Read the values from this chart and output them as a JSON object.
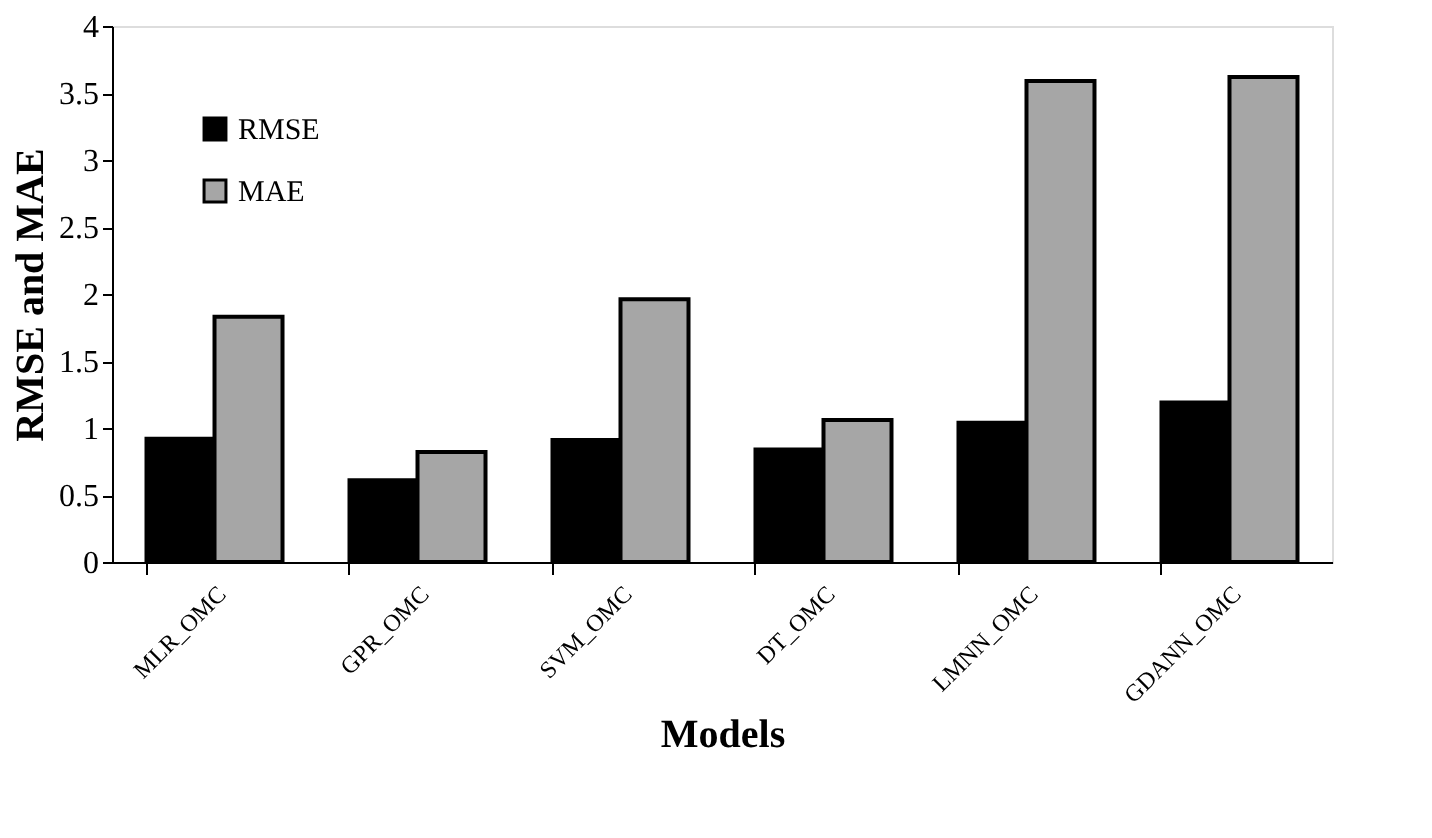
{
  "chart_data": {
    "type": "bar",
    "xlabel": "Models",
    "ylabel": "RMSE and MAE",
    "categories": [
      "MLR_OMC",
      "GPR_OMC",
      "SVM_OMC",
      "DT_OMC",
      "LMNN_OMC",
      "GDANN_OMC"
    ],
    "series": [
      {
        "name": "RMSE",
        "color": "#000000",
        "values": [
          0.92,
          0.61,
          0.91,
          0.84,
          1.04,
          1.19
        ]
      },
      {
        "name": "MAE",
        "color": "#a6a6a6",
        "values": [
          1.83,
          0.82,
          1.96,
          1.06,
          3.59,
          3.62
        ]
      }
    ],
    "ylim": [
      0,
      4
    ],
    "yticks": [
      0,
      0.5,
      1,
      1.5,
      2,
      2.5,
      3,
      3.5,
      4
    ],
    "grid": false,
    "legend": "top left"
  }
}
